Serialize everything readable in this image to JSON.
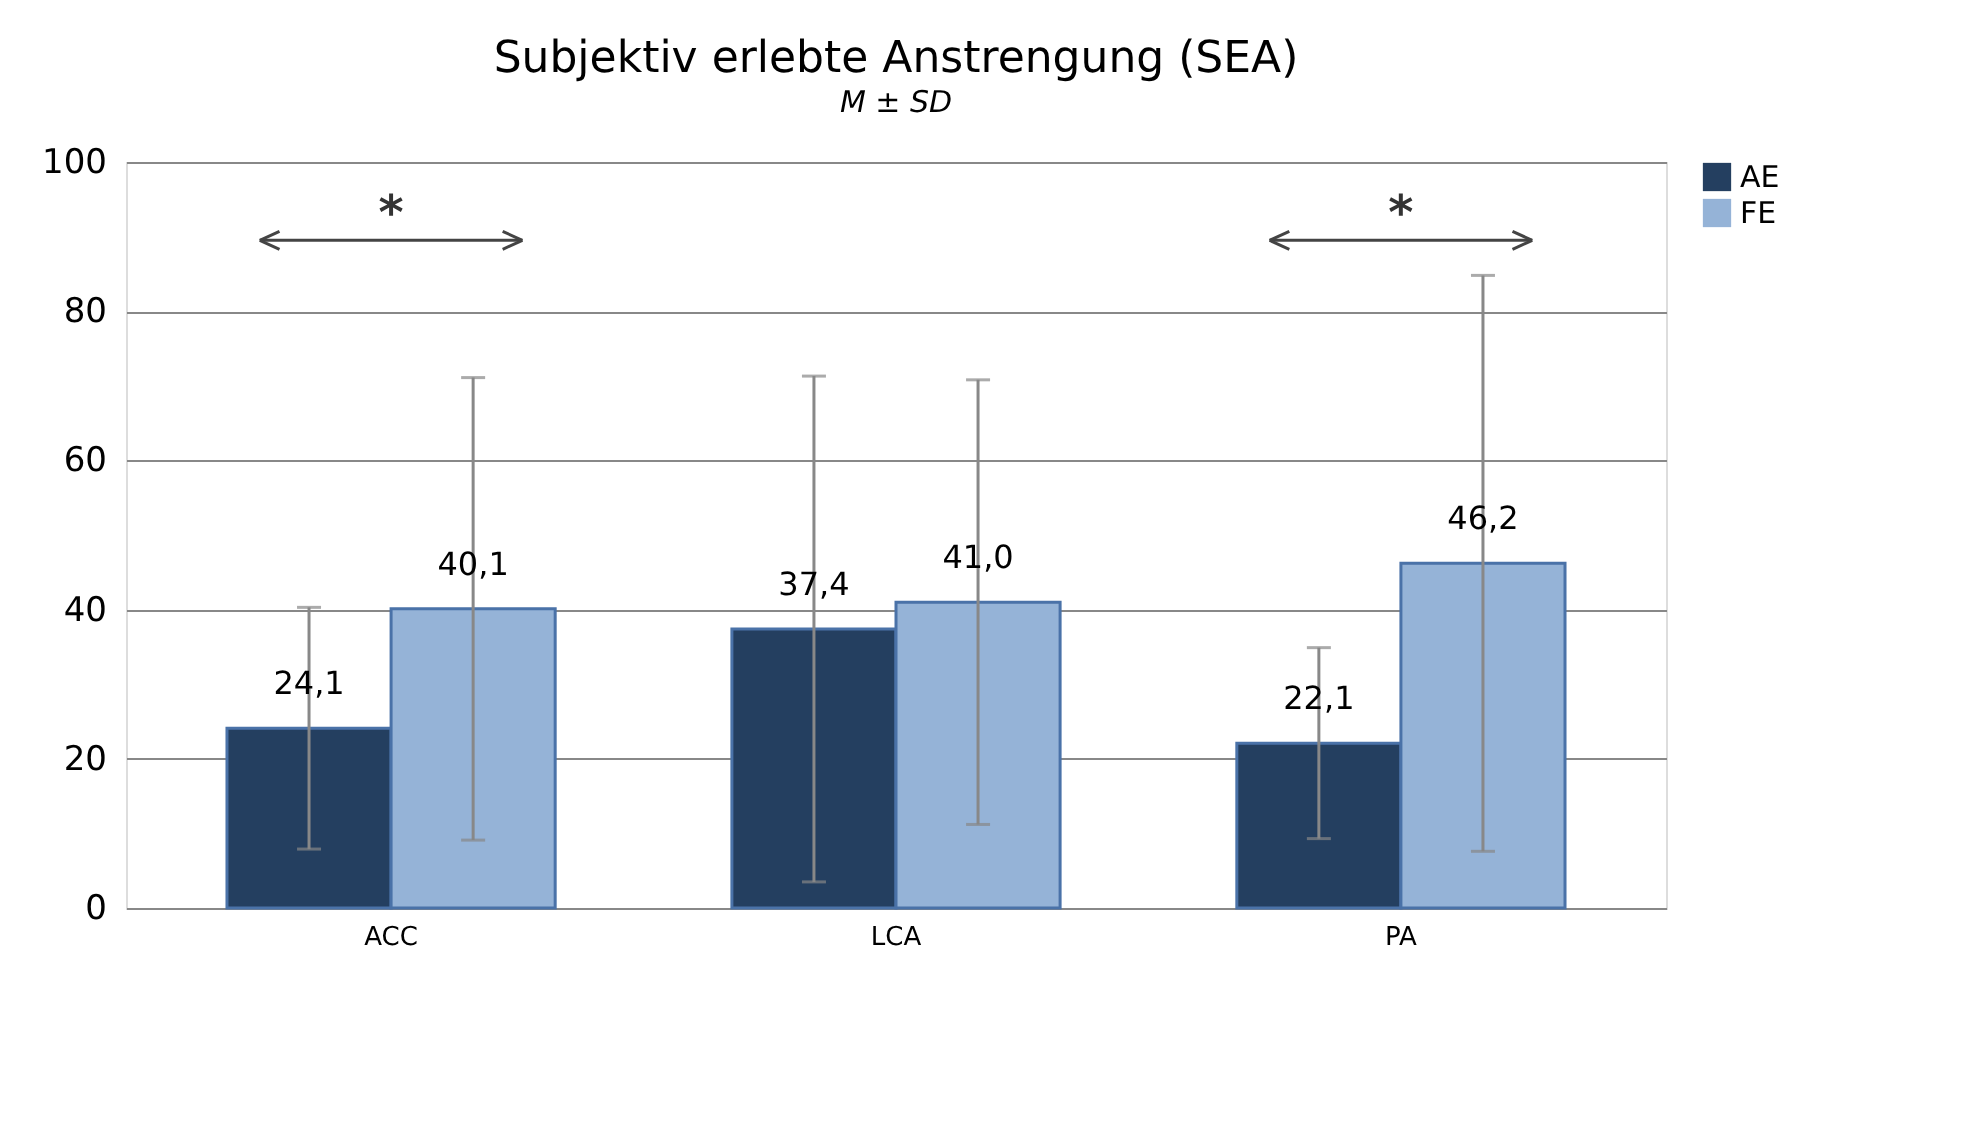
{
  "chart_data": {
    "type": "bar",
    "title": "Subjektiv erlebte Anstrengung (SEA)",
    "subtitle": "M ± SD",
    "categories": [
      "ACC",
      "LCA",
      "PA"
    ],
    "series": [
      {
        "name": "AE",
        "color": "#243f60",
        "values": [
          24.1,
          37.4,
          22.1
        ],
        "errors": [
          16.2,
          33.9,
          12.8
        ],
        "value_labels": [
          "24,1",
          "37,4",
          "22,1"
        ]
      },
      {
        "name": "FE",
        "color": "#95b3d7",
        "values": [
          40.1,
          41.0,
          46.2
        ],
        "errors": [
          31.0,
          29.8,
          38.6
        ],
        "value_labels": [
          "40,1",
          "41,0",
          "46,2"
        ]
      }
    ],
    "ylim": [
      0,
      100
    ],
    "yticks": [
      0,
      20,
      40,
      60,
      80,
      100
    ],
    "grid": "y",
    "legend": "right",
    "annotations": [
      "*",
      "*"
    ]
  }
}
